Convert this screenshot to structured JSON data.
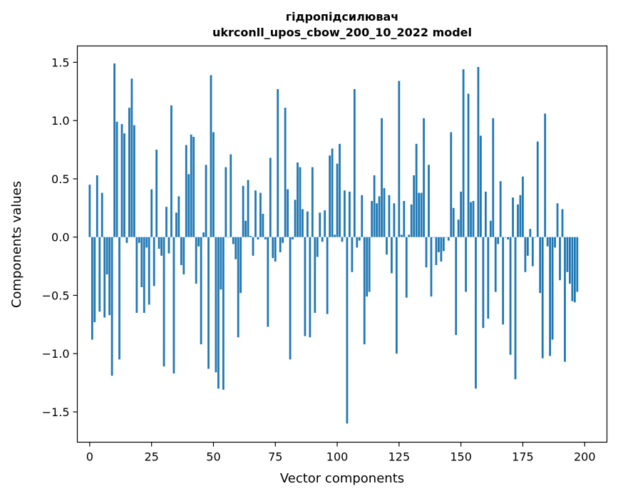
{
  "chart_data": {
    "type": "bar",
    "title_line1": "гідропідсилювач",
    "title_line2": "ukrconll_upos_cbow_200_10_2022 model",
    "xlabel": "Vector components",
    "ylabel": "Components values",
    "xlim": [
      -5,
      209
    ],
    "ylim": [
      -1.76,
      1.64
    ],
    "xticks": [
      0,
      25,
      50,
      75,
      100,
      125,
      150,
      175,
      200
    ],
    "yticks": [
      -1.5,
      -1.0,
      -0.5,
      0.0,
      0.5,
      1.0,
      1.5
    ],
    "ytick_labels": [
      "−1.5",
      "−1.0",
      "−0.5",
      "0.0",
      "0.5",
      "1.0",
      "1.5"
    ],
    "bar_color": "#1f77b4",
    "values": [
      0.45,
      -0.88,
      -0.73,
      0.53,
      -0.64,
      0.38,
      -0.69,
      -0.32,
      -0.67,
      -1.19,
      1.49,
      0.99,
      -1.05,
      0.97,
      0.89,
      -0.05,
      1.11,
      1.36,
      0.96,
      -0.65,
      -0.05,
      -0.43,
      -0.65,
      -0.09,
      -0.58,
      0.41,
      -0.42,
      0.75,
      -0.1,
      -0.16,
      -1.11,
      0.26,
      -0.14,
      1.13,
      -1.17,
      0.21,
      0.35,
      -0.24,
      -0.32,
      0.79,
      0.54,
      0.88,
      0.86,
      -0.4,
      -0.08,
      -0.92,
      0.04,
      0.62,
      -1.13,
      1.39,
      0.9,
      -1.16,
      -1.3,
      -0.45,
      -1.31,
      0.6,
      0.0,
      0.71,
      -0.06,
      -0.19,
      -0.86,
      -0.48,
      0.44,
      0.14,
      0.49,
      0.01,
      -0.16,
      0.4,
      -0.02,
      0.38,
      0.2,
      -0.02,
      -0.77,
      0.68,
      -0.18,
      -0.21,
      1.27,
      -0.13,
      -0.05,
      1.11,
      0.41,
      -1.05,
      -0.02,
      0.32,
      0.64,
      0.6,
      0.24,
      -0.85,
      0.22,
      -0.86,
      0.6,
      -0.65,
      -0.17,
      0.21,
      -0.04,
      0.23,
      -0.66,
      0.7,
      0.76,
      0.02,
      0.63,
      0.8,
      -0.04,
      0.4,
      -1.6,
      0.39,
      -0.3,
      1.27,
      -0.09,
      -0.03,
      0.36,
      -0.92,
      -0.51,
      -0.47,
      0.31,
      0.53,
      0.29,
      0.35,
      1.02,
      0.42,
      -0.15,
      0.36,
      -0.31,
      0.29,
      -1.0,
      1.34,
      0.02,
      0.31,
      -0.52,
      0.02,
      0.28,
      0.53,
      0.8,
      0.38,
      0.38,
      1.02,
      -0.26,
      0.62,
      -0.51,
      0.0,
      -0.24,
      -0.13,
      -0.21,
      -0.12,
      0.0,
      -0.03,
      0.9,
      0.25,
      -0.84,
      0.15,
      0.39,
      1.44,
      -0.47,
      1.23,
      0.3,
      0.31,
      -1.3,
      1.46,
      0.87,
      -0.78,
      0.39,
      -0.7,
      0.14,
      1.02,
      -0.47,
      -0.06,
      0.48,
      -0.75,
      0.0,
      -0.02,
      -1.01,
      0.34,
      -1.22,
      0.28,
      0.36,
      0.52,
      -0.3,
      -0.16,
      0.07,
      -0.25,
      0.0,
      0.82,
      -0.48,
      -1.04,
      1.06,
      -0.08,
      -1.02,
      -0.88,
      -0.09,
      0.29,
      -0.37,
      0.24,
      -1.07,
      -0.3,
      -0.4,
      -0.55,
      -0.56,
      -0.47
    ]
  }
}
